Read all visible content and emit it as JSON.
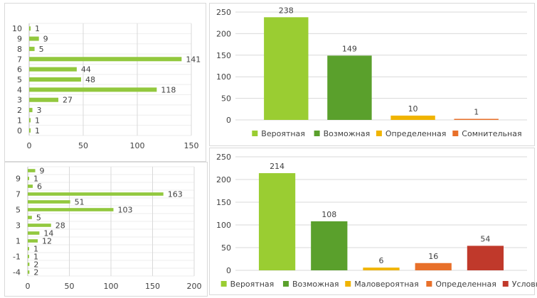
{
  "colors": {
    "hbar": "#92c83e",
    "grid": "#d9d9d9",
    "axis_text": "#404040",
    "series_palette": {
      "Вероятная": "#9acd32",
      "Возможная": "#5aa02c",
      "Определенная_gold": "#f0b400",
      "Маловероятная": "#f0b400",
      "Сомнительная": "#e8702a",
      "Определенная_orange": "#e8702a",
      "Условная": "#c0392b"
    }
  },
  "chart_data": [
    {
      "type": "bar",
      "orientation": "horizontal",
      "title": "",
      "categories": [
        "0",
        "1",
        "2",
        "3",
        "4",
        "5",
        "6",
        "7",
        "8",
        "9",
        "10"
      ],
      "values": [
        1,
        1,
        3,
        27,
        118,
        48,
        44,
        141,
        5,
        9,
        1
      ],
      "xlim": [
        0,
        150
      ],
      "xticks": [
        "0",
        "50",
        "100",
        "150"
      ],
      "grid": true
    },
    {
      "type": "bar",
      "orientation": "horizontal",
      "title": "",
      "categories": [
        "-4",
        "",
        "-1",
        "",
        "1",
        "",
        "3",
        "",
        "5",
        "",
        "7",
        "",
        "9",
        ""
      ],
      "values": [
        2,
        2,
        1,
        1,
        12,
        14,
        28,
        5,
        103,
        51,
        163,
        6,
        1,
        9
      ],
      "xlim": [
        0,
        200
      ],
      "xticks": [
        "0",
        "50",
        "100",
        "150",
        "200"
      ],
      "grid": true
    },
    {
      "type": "bar",
      "title": "",
      "categories": [
        "Вероятная",
        "Возможная",
        "Определенная",
        "Сомнительная"
      ],
      "values": [
        238,
        149,
        10,
        1
      ],
      "bar_colors": [
        "#9acd32",
        "#5aa02c",
        "#f0b400",
        "#e8702a"
      ],
      "ylim": [
        0,
        250
      ],
      "yticks": [
        "0",
        "50",
        "100",
        "150",
        "200",
        "250"
      ],
      "legend": [
        "Вероятная",
        "Возможная",
        "Определенная",
        "Сомнительная"
      ],
      "legend_position": "bottom",
      "grid": true
    },
    {
      "type": "bar",
      "title": "",
      "categories": [
        "Вероятная",
        "Возможная",
        "Маловероятная",
        "Определенная",
        "Условная"
      ],
      "values": [
        214,
        108,
        6,
        16,
        54
      ],
      "bar_colors": [
        "#9acd32",
        "#5aa02c",
        "#f0b400",
        "#e8702a",
        "#c0392b"
      ],
      "ylim": [
        0,
        250
      ],
      "yticks": [
        "0",
        "50",
        "100",
        "150",
        "200",
        "250"
      ],
      "legend": [
        "Вероятная",
        "Возможная",
        "Маловероятная",
        "Определенная",
        "Условная"
      ],
      "legend_position": "bottom",
      "grid": true
    }
  ]
}
